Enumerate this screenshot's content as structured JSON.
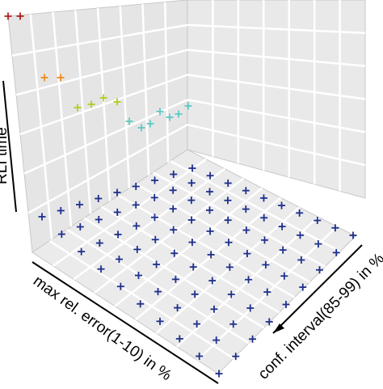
{
  "chart_data": {
    "type": "scatter3d",
    "xlabel": "max rel. error(1-10) in %",
    "ylabel": "conf. interval(85-99) in %",
    "zlabel": "RLI time",
    "grid": true,
    "marker": "+",
    "colormap": "jet",
    "upper_points": [
      {
        "color": "#b22222",
        "level": 1.0
      },
      {
        "color": "#b22222",
        "level": 1.0
      },
      {
        "color": "#f08c1e",
        "level": 0.82
      },
      {
        "color": "#f08c1e",
        "level": 0.82
      },
      {
        "color": "#b5cc1f",
        "level": 0.6
      },
      {
        "color": "#b5cc1f",
        "level": 0.6
      },
      {
        "color": "#b5cc1f",
        "level": 0.6
      },
      {
        "color": "#b5cc1f",
        "level": 0.6
      },
      {
        "color": "#5fc9c4",
        "level": 0.45
      },
      {
        "color": "#5fc9c4",
        "level": 0.45
      },
      {
        "color": "#5fc9c4",
        "level": 0.45
      },
      {
        "color": "#5fc9c4",
        "level": 0.45
      },
      {
        "color": "#5fc9c4",
        "level": 0.45
      },
      {
        "color": "#5fc9c4",
        "level": 0.45
      },
      {
        "color": "#5fc9c4",
        "level": 0.45
      }
    ],
    "base_color": "#1e2f8c"
  }
}
